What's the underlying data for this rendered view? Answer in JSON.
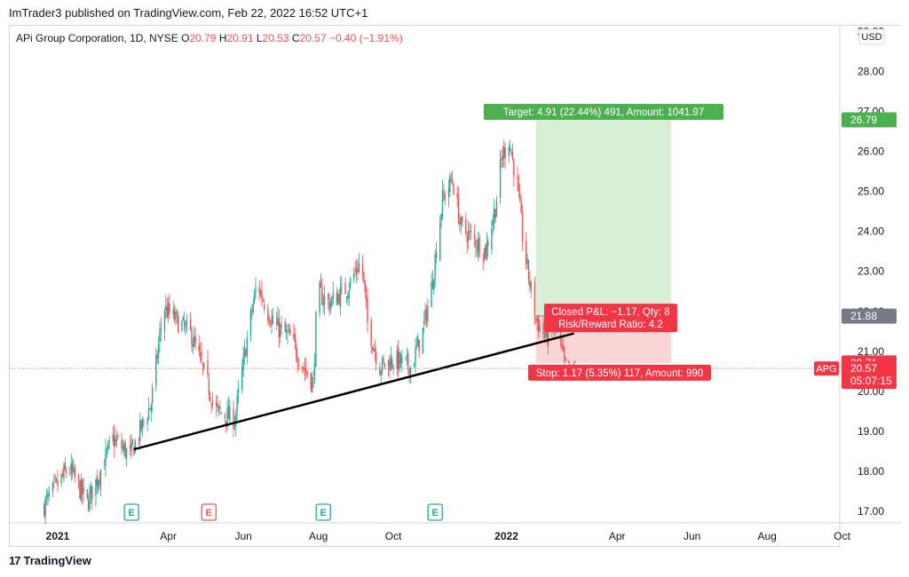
{
  "header": {
    "published_by": "ImTrader3 published on TradingView.com, Feb 22, 2022 16:52 UTC+1"
  },
  "legend": {
    "symbol": "APi Group Corporation, 1D, NYSE",
    "o_label": "O",
    "o_value": "20.79",
    "h_label": "H",
    "h_value": "20.91",
    "l_label": "L",
    "l_value": "20.53",
    "c_label": "C",
    "c_value": "20.57",
    "change": "−0.40 (−1.91%)"
  },
  "currency": "USD",
  "footer": {
    "brand": "TradingView",
    "logo_text": "17"
  },
  "colors": {
    "up": "#26a69a",
    "down": "#ef5350",
    "target_fill": "#d8eed8",
    "stop_fill": "#f9d6d5",
    "target_label": "#4caf50",
    "stop_label": "#f23645",
    "entry_label": "#787b86"
  },
  "chart_data": {
    "type": "candlestick",
    "symbol": "APG",
    "timeframe": "1D",
    "x_labels": [
      "2021",
      "Apr",
      "Jun",
      "Aug",
      "Oct",
      "2022",
      "Apr",
      "Jun",
      "Aug",
      "Oct"
    ],
    "y_ticks": [
      "17.00",
      "18.00",
      "19.00",
      "20.00",
      "21.00",
      "22.00",
      "23.00",
      "24.00",
      "25.00",
      "26.00",
      "27.00",
      "28.00",
      "29.00"
    ],
    "ylim": [
      16.75,
      29.0
    ],
    "last_price": 20.57,
    "countdown": "05:07:15",
    "price_anchors": [
      [
        "2020-12-20",
        17.1
      ],
      [
        "2021-01-10",
        18.1
      ],
      [
        "2021-01-25",
        17.2
      ],
      [
        "2021-02-15",
        18.8
      ],
      [
        "2021-03-01",
        18.4
      ],
      [
        "2021-03-18",
        19.7
      ],
      [
        "2021-03-28",
        22.1
      ],
      [
        "2021-04-20",
        21.4
      ],
      [
        "2021-05-10",
        19.5
      ],
      [
        "2021-05-25",
        19.3
      ],
      [
        "2021-06-05",
        21.5
      ],
      [
        "2021-06-12",
        22.7
      ],
      [
        "2021-06-25",
        21.7
      ],
      [
        "2021-07-10",
        21.3
      ],
      [
        "2021-07-20",
        20.6
      ],
      [
        "2021-07-28",
        20.2
      ],
      [
        "2021-07-31",
        22.5
      ],
      [
        "2021-08-10",
        22.2
      ],
      [
        "2021-08-25",
        22.6
      ],
      [
        "2021-09-05",
        23.3
      ],
      [
        "2021-09-10",
        21.7
      ],
      [
        "2021-09-20",
        20.6
      ],
      [
        "2021-10-01",
        20.8
      ],
      [
        "2021-10-15",
        20.6
      ],
      [
        "2021-10-25",
        21.5
      ],
      [
        "2021-11-01",
        22.6
      ],
      [
        "2021-11-10",
        24.8
      ],
      [
        "2021-11-18",
        25.3
      ],
      [
        "2021-11-25",
        24.1
      ],
      [
        "2021-12-05",
        23.8
      ],
      [
        "2021-12-15",
        23.5
      ],
      [
        "2021-12-23",
        24.6
      ],
      [
        "2021-12-28",
        25.8
      ],
      [
        "2022-01-03",
        26.3
      ],
      [
        "2022-01-10",
        25.1
      ],
      [
        "2022-01-15",
        23.6
      ],
      [
        "2022-01-25",
        21.8
      ],
      [
        "2022-02-01",
        21.4
      ],
      [
        "2022-02-10",
        21.6
      ],
      [
        "2022-02-18",
        20.57
      ]
    ],
    "trendline": {
      "from": [
        "2021-03-04",
        18.55
      ],
      "to": [
        "2022-02-25",
        21.45
      ]
    },
    "earnings_markers": [
      {
        "date": "2021-03-02",
        "label": "E",
        "color": "#26a69a"
      },
      {
        "date": "2021-05-04",
        "label": "E",
        "color": "#ef5350"
      },
      {
        "date": "2021-08-05",
        "label": "E",
        "color": "#26a69a"
      },
      {
        "date": "2021-11-04",
        "label": "E",
        "color": "#26a69a"
      }
    ],
    "position": {
      "start": "2022-01-25",
      "end": "2022-05-15",
      "entry": 21.88,
      "target": 26.79,
      "stop": 20.71,
      "target_label": "Target: 4.91 (22.44%) 491, Amount: 1041.97",
      "stop_label": "Stop: 1.17 (5.35%) 117, Amount: 990",
      "pnl_label": "Closed P&L: −1.17, Qty: 8",
      "rr_label": "Risk/Reward Ratio: 4.2"
    },
    "price_labels": {
      "target": "26.79",
      "entry": "21.88",
      "stop": "20.71",
      "last": "20.57",
      "ticker": "APG"
    }
  }
}
